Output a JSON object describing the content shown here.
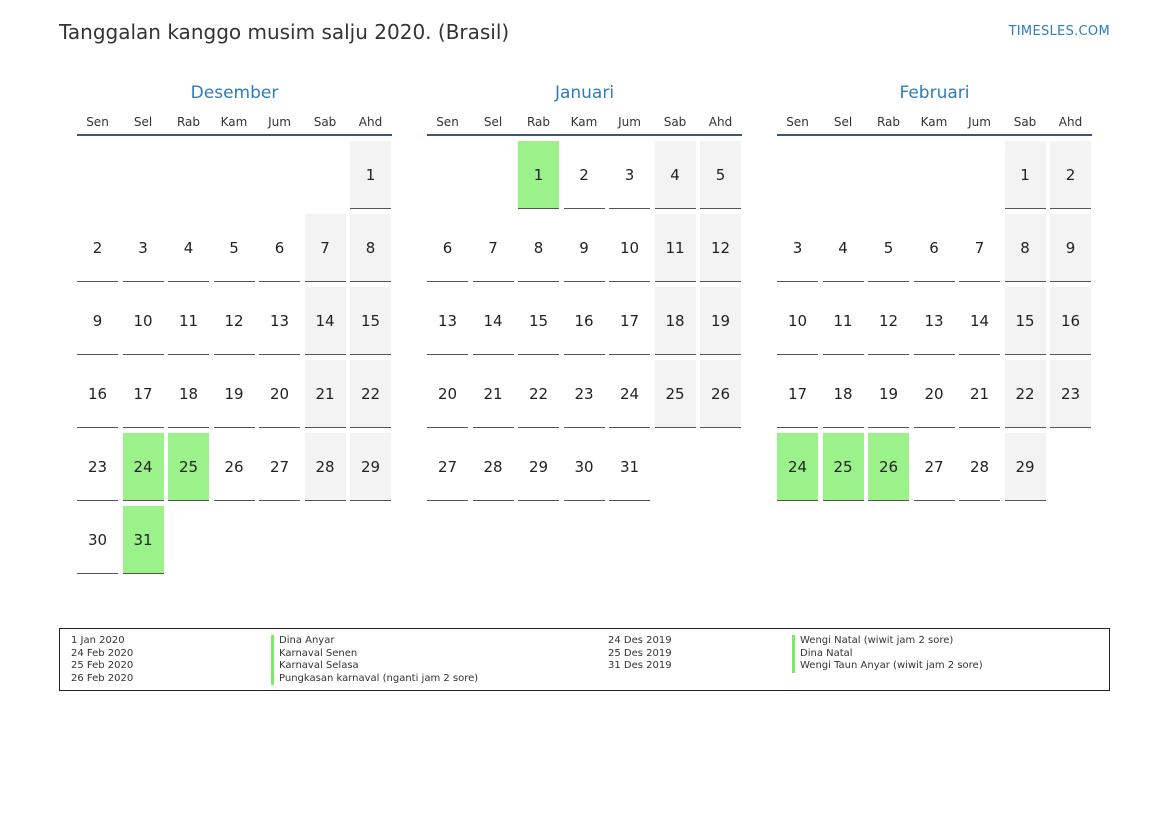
{
  "header": {
    "title": "Tanggalan kanggo musim salju 2020. (Brasil)",
    "brand": "TIMESLES.COM"
  },
  "weekdays": [
    "Sen",
    "Sel",
    "Rab",
    "Kam",
    "Jum",
    "Sab",
    "Ahd"
  ],
  "months": [
    {
      "name": "Desember",
      "lead_blanks": 6,
      "days": [
        "1",
        "2",
        "3",
        "4",
        "5",
        "6",
        "7",
        "8",
        "9",
        "10",
        "11",
        "12",
        "13",
        "14",
        "15",
        "16",
        "17",
        "18",
        "19",
        "20",
        "21",
        "22",
        "23",
        "24",
        "25",
        "26",
        "27",
        "28",
        "29",
        "30",
        "31"
      ],
      "holidays": [
        "24",
        "25",
        "31"
      ]
    },
    {
      "name": "Januari",
      "lead_blanks": 2,
      "days": [
        "1",
        "2",
        "3",
        "4",
        "5",
        "6",
        "7",
        "8",
        "9",
        "10",
        "11",
        "12",
        "13",
        "14",
        "15",
        "16",
        "17",
        "18",
        "19",
        "20",
        "21",
        "22",
        "23",
        "24",
        "25",
        "26",
        "27",
        "28",
        "29",
        "30",
        "31"
      ],
      "holidays": [
        "1"
      ]
    },
    {
      "name": "Februari",
      "lead_blanks": 5,
      "days": [
        "1",
        "2",
        "3",
        "4",
        "5",
        "6",
        "7",
        "8",
        "9",
        "10",
        "11",
        "12",
        "13",
        "14",
        "15",
        "16",
        "17",
        "18",
        "19",
        "20",
        "21",
        "22",
        "23",
        "24",
        "25",
        "26",
        "27",
        "28",
        "29"
      ],
      "holidays": [
        "24",
        "25",
        "26"
      ]
    }
  ],
  "legend": {
    "left": [
      {
        "date": "1 Jan 2020",
        "name": "Dina Anyar"
      },
      {
        "date": "24 Feb 2020",
        "name": "Karnaval Senen"
      },
      {
        "date": "25 Feb 2020",
        "name": "Karnaval Selasa"
      },
      {
        "date": "26 Feb 2020",
        "name": "Pungkasan karnaval (nganti jam 2 sore)"
      }
    ],
    "right": [
      {
        "date": "24 Des 2019",
        "name": "Wengi Natal (wiwit jam 2 sore)"
      },
      {
        "date": "25 Des 2019",
        "name": "Dina Natal"
      },
      {
        "date": "31 Des 2019",
        "name": "Wengi Taun Anyar (wiwit jam 2 sore)"
      }
    ]
  },
  "colors": {
    "accent": "#2f7bbd",
    "holiday": "#9cf28a",
    "weekend": "#f3f3f3",
    "rule": "#3f5670"
  }
}
